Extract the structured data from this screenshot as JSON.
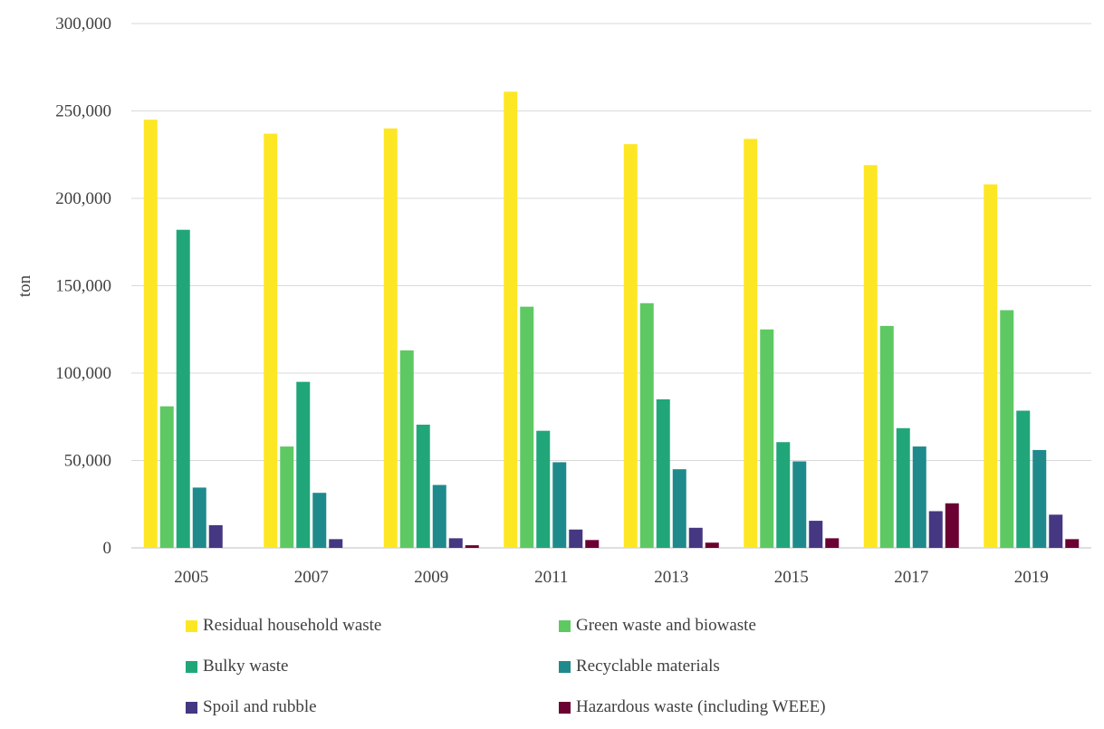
{
  "chart_data": {
    "type": "bar",
    "ylabel": "ton",
    "xlabel": "",
    "ylim": [
      0,
      300000
    ],
    "yticks": [
      0,
      50000,
      100000,
      150000,
      200000,
      250000,
      300000
    ],
    "ytick_labels": [
      "0",
      "50,000",
      "100,000",
      "150,000",
      "200,000",
      "250,000",
      "300,000"
    ],
    "grid": true,
    "legend_position": "bottom",
    "categories": [
      "2005",
      "2007",
      "2009",
      "2011",
      "2013",
      "2015",
      "2017",
      "2019"
    ],
    "series": [
      {
        "name": "Residual household waste",
        "color": "#fde725",
        "values": [
          245000,
          237000,
          240000,
          261000,
          231000,
          234000,
          219000,
          208000
        ]
      },
      {
        "name": "Green waste and biowaste",
        "color": "#5ec962",
        "values": [
          81000,
          58000,
          113000,
          138000,
          140000,
          125000,
          127000,
          136000
        ]
      },
      {
        "name": "Bulky waste",
        "color": "#21a67a",
        "values": [
          182000,
          95000,
          70500,
          67000,
          85000,
          60500,
          68500,
          78500
        ]
      },
      {
        "name": "Recyclable materials",
        "color": "#1f8a8c",
        "values": [
          34500,
          31500,
          36000,
          49000,
          45000,
          49500,
          58000,
          56000
        ]
      },
      {
        "name": "Spoil and rubble",
        "color": "#453781",
        "values": [
          13000,
          5000,
          5500,
          10500,
          11500,
          15500,
          21000,
          19000
        ]
      },
      {
        "name": "Hazardous waste (including WEEE)",
        "color": "#6b0032",
        "values": [
          0,
          0,
          1500,
          4500,
          3000,
          5500,
          25500,
          5000
        ]
      }
    ]
  }
}
